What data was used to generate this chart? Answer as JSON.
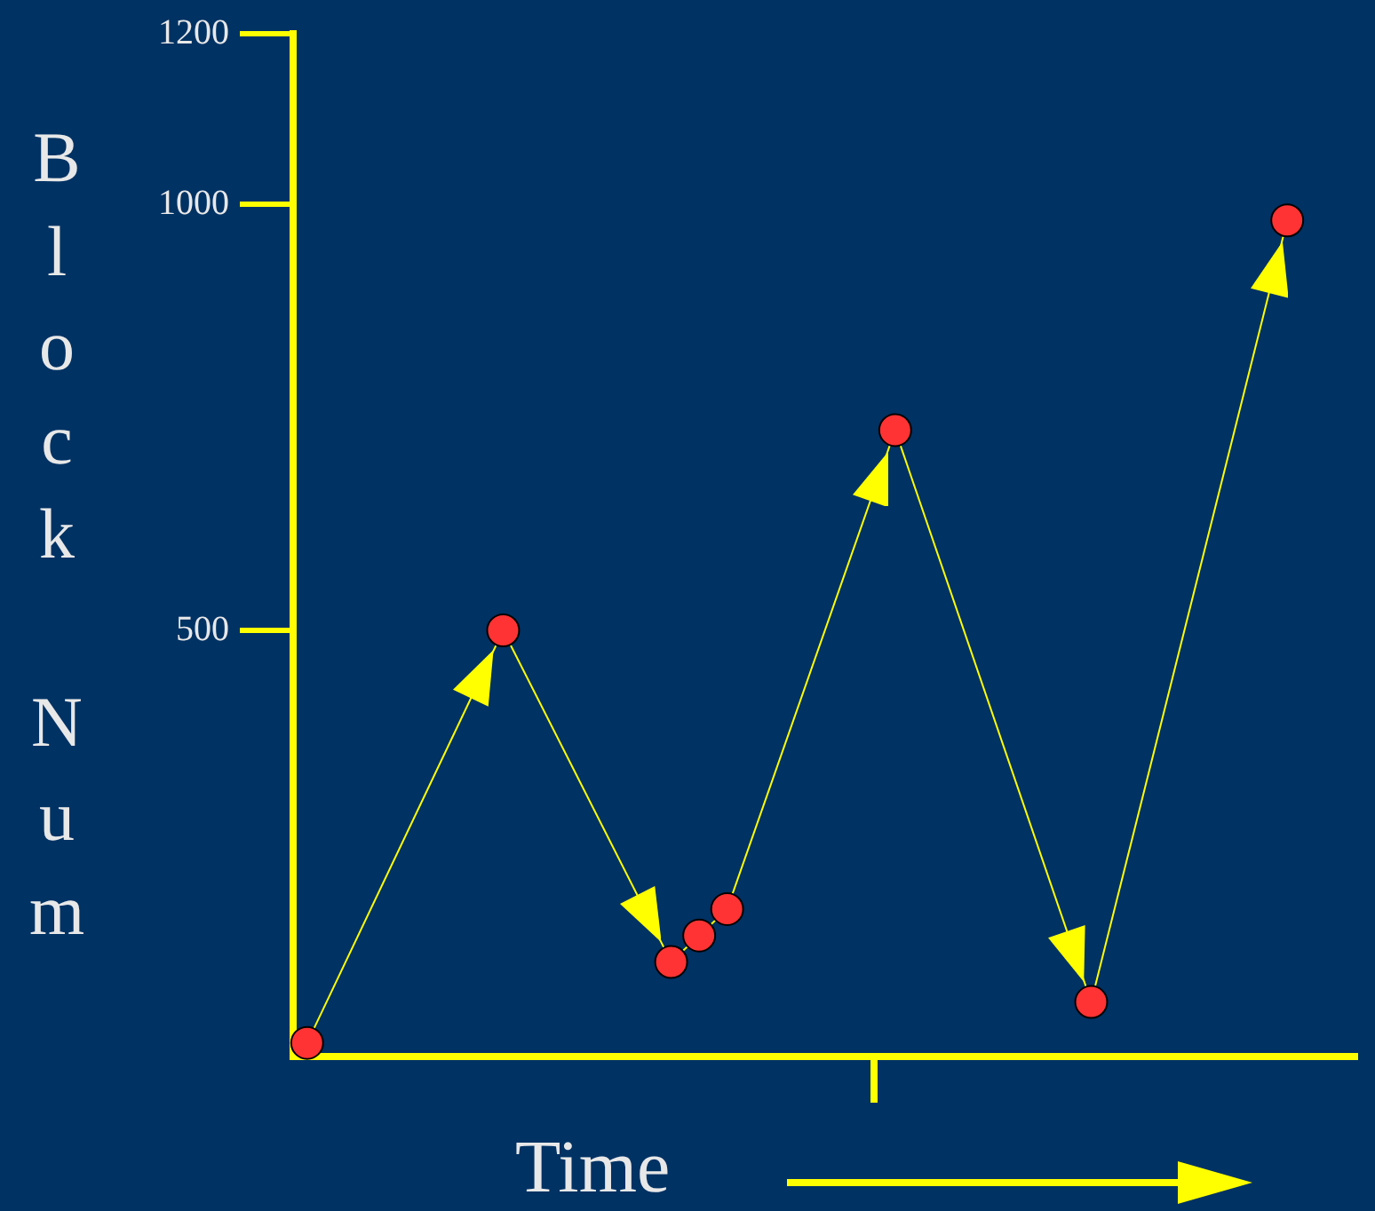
{
  "chart_data": {
    "type": "line",
    "xlabel": "Time",
    "ylabel": "Block Num",
    "categories": [
      null,
      null,
      null,
      null,
      null,
      null,
      null,
      null,
      null,
      null,
      null,
      null,
      null,
      null,
      null,
      null,
      null,
      null,
      null,
      null,
      null,
      null,
      null,
      null,
      null,
      null,
      null,
      null,
      null,
      null,
      null,
      null,
      null,
      null,
      null,
      null,
      null,
      null
    ],
    "series": [
      {
        "color": "#ffff00",
        "colors": [
          "#ff3333",
          "#ff3333",
          "#ff3333",
          "#ff3333",
          "#ff3333",
          "#ff3333",
          "#ff3333",
          "#ff3333",
          "#ff3333",
          "#ff3333",
          "#ff3333",
          "#ff3333",
          "#ff3333",
          "#ff3333",
          "#ff3333",
          "#ff3333",
          "#ff3333",
          "#ff3333",
          "#ff3333",
          "#ff3333",
          "#ff3333",
          "#ff3333",
          "#ff3333",
          "#ff3333",
          "#ff3333",
          "#ff3333",
          "#ff3333",
          "#ff3333",
          "#ff3333",
          "#ff3333",
          "#ff3333",
          "#ff3333",
          "#ff3333",
          "#ff3333",
          "#ff3333",
          "#ff3333",
          "#ff3333",
          "#ff3333"
        ],
        "values": [
          16,
          null,
          null,
          null,
          null,
          null,
          null,
          500,
          null,
          null,
          null,
          null,
          null,
          111,
          142,
          173,
          null,
          null,
          null,
          null,
          null,
          735,
          null,
          null,
          null,
          null,
          null,
          null,
          64,
          null,
          null,
          null,
          null,
          null,
          null,
          981,
          null,
          null
        ]
      }
    ],
    "ylim": [
      0,
      1200
    ],
    "yticks": [
      500,
      1000,
      1200
    ],
    "tick_labels": "y",
    "grid": false,
    "legend": false,
    "marker": "circle",
    "line_style": "solid"
  }
}
